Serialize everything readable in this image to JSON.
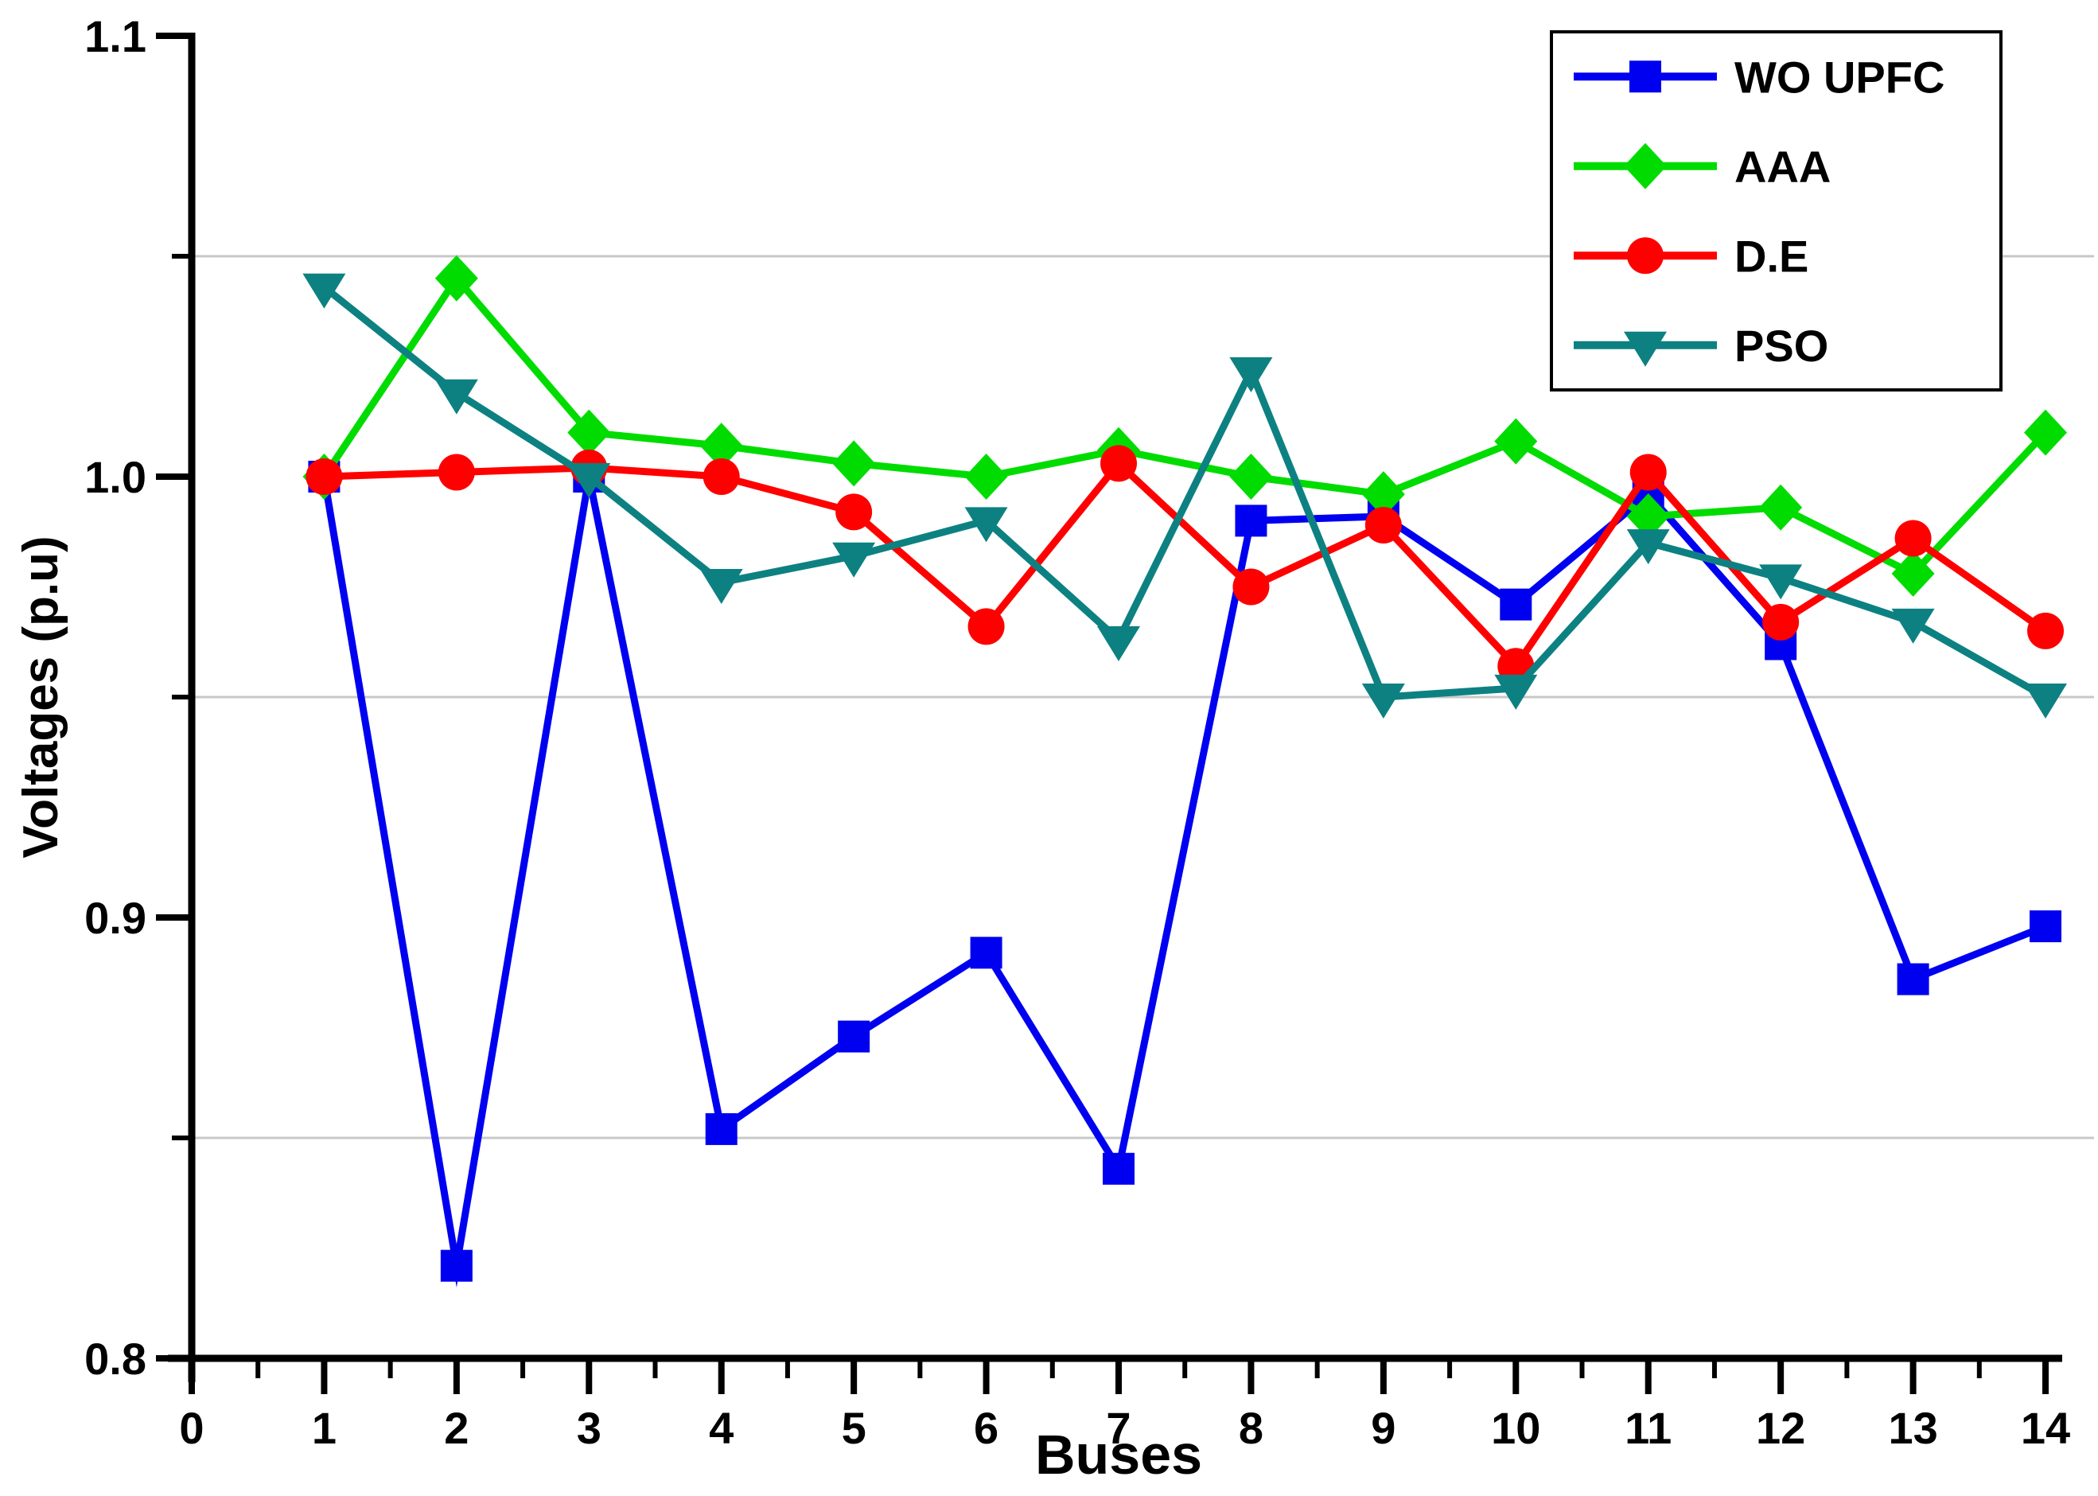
{
  "chart_data": {
    "type": "line",
    "title": "",
    "xlabel": "Buses",
    "ylabel": "Voltages (p.u)",
    "x": [
      1,
      2,
      3,
      4,
      5,
      6,
      7,
      8,
      9,
      10,
      11,
      12,
      13,
      14
    ],
    "series": [
      {
        "name": "WO UPFC",
        "color": "#0000f0",
        "marker": "square",
        "values": [
          1.0,
          0.821,
          1.0,
          0.852,
          0.873,
          0.892,
          0.843,
          0.99,
          0.991,
          0.971,
          0.996,
          0.962,
          0.886,
          0.898
        ]
      },
      {
        "name": "AAA",
        "color": "#00dc00",
        "marker": "diamond",
        "values": [
          1.0,
          1.045,
          1.01,
          1.007,
          1.003,
          1.0,
          1.006,
          1.0,
          0.996,
          1.008,
          0.991,
          0.993,
          0.978,
          1.01
        ]
      },
      {
        "name": "D.E",
        "color": "#ff0000",
        "marker": "circle",
        "values": [
          1.0,
          1.001,
          1.002,
          1.0,
          0.992,
          0.966,
          1.003,
          0.975,
          0.989,
          0.957,
          1.001,
          0.967,
          0.986,
          0.965
        ]
      },
      {
        "name": "PSO",
        "color": "#0d8181",
        "marker": "triangle-down",
        "values": [
          1.043,
          1.019,
          1.0,
          0.976,
          0.982,
          0.99,
          0.963,
          1.024,
          0.95,
          0.952,
          0.985,
          0.977,
          0.967,
          0.95
        ]
      }
    ],
    "x_axis": {
      "min": 0,
      "max": 14,
      "major_ticks": [
        {
          "value": 0,
          "label": "0"
        },
        {
          "value": 1,
          "label": "1"
        },
        {
          "value": 2,
          "label": "2"
        },
        {
          "value": 3,
          "label": "3"
        },
        {
          "value": 4,
          "label": "4"
        },
        {
          "value": 5,
          "label": "5"
        },
        {
          "value": 6,
          "label": "6"
        },
        {
          "value": 7,
          "label": "7"
        },
        {
          "value": 8,
          "label": "8"
        },
        {
          "value": 9,
          "label": "9"
        },
        {
          "value": 10,
          "label": "10"
        },
        {
          "value": 11,
          "label": "11"
        },
        {
          "value": 12,
          "label": "12"
        },
        {
          "value": 13,
          "label": "13"
        },
        {
          "value": 14,
          "label": "14"
        }
      ],
      "minor_tick_step": 0.5
    },
    "y_axis": {
      "min": 0.8,
      "max": 1.1,
      "major_ticks": [
        {
          "value": 1.1,
          "label": "1.1"
        },
        {
          "value": 1.0,
          "label": "1.0"
        },
        {
          "value": 0.9,
          "label": "0.9"
        },
        {
          "value": 0.8,
          "label": "0.8"
        }
      ],
      "minor_ticks": [
        1.05,
        0.95,
        0.85
      ]
    },
    "grid": {
      "horizontal_at": [
        1.05,
        0.95,
        0.85
      ],
      "color": "#c8c8c8"
    },
    "legend": {
      "position": "top-right",
      "entries": [
        "WO UPFC",
        "AAA",
        "D.E",
        "PSO"
      ]
    },
    "colors": {
      "axis": "#000000",
      "background": "#ffffff",
      "legend_border": "#000000"
    }
  }
}
